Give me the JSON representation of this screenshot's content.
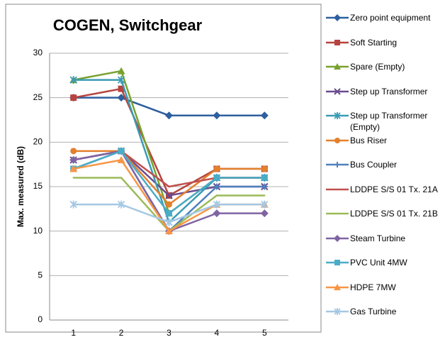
{
  "chart_data": {
    "type": "line",
    "title": "COGEN, Switchgear",
    "y_label": "Max. measured (dB)",
    "categories": [
      "1",
      "2",
      "3",
      "4",
      "5"
    ],
    "ylim": [
      0,
      30
    ],
    "yticks": [
      0,
      5,
      10,
      15,
      20,
      25,
      30
    ],
    "grid": true,
    "legend": "right",
    "series": [
      {
        "name": "Zero point equipment",
        "color": "#2e5f9e",
        "marker": "diamond",
        "values": [
          25,
          25,
          23,
          23,
          23
        ]
      },
      {
        "name": "Soft Starting",
        "color": "#b6433f",
        "marker": "square",
        "values": [
          25,
          26,
          14,
          17,
          17
        ]
      },
      {
        "name": "Spare (Empty)",
        "color": "#78a22f",
        "marker": "triangle",
        "values": [
          27,
          28,
          12,
          16,
          16
        ]
      },
      {
        "name": "Step up Transformer",
        "color": "#6a4b90",
        "marker": "x",
        "values": [
          18,
          19,
          14,
          15,
          15
        ]
      },
      {
        "name": "Step up Transformer (Empty)",
        "color": "#3a9bb5",
        "marker": "star",
        "values": [
          27,
          27,
          11,
          16,
          16
        ]
      },
      {
        "name": "Bus Riser",
        "color": "#e2802e",
        "marker": "circle",
        "values": [
          19,
          19,
          13,
          17,
          17
        ]
      },
      {
        "name": "Bus Coupler",
        "color": "#4f81bd",
        "marker": "plus",
        "values": [
          17,
          19,
          10,
          15,
          15
        ]
      },
      {
        "name": "LDDPE S/S 01 Tx. 21A",
        "color": "#c0504d",
        "marker": "none",
        "values": [
          18,
          19,
          15,
          16,
          16
        ]
      },
      {
        "name": "LDDPE S/S 01 Tx. 21B",
        "color": "#9bbb59",
        "marker": "none",
        "values": [
          16,
          16,
          10,
          14,
          14
        ]
      },
      {
        "name": "Steam Turbine",
        "color": "#8064a2",
        "marker": "diamond",
        "values": [
          18,
          19,
          10,
          12,
          12
        ]
      },
      {
        "name": "PVC Unit 4MW",
        "color": "#4bacc6",
        "marker": "square",
        "values": [
          17,
          19,
          12,
          16,
          16
        ]
      },
      {
        "name": "HDPE 7MW",
        "color": "#f79646",
        "marker": "triangle",
        "values": [
          17,
          18,
          10,
          13,
          13
        ]
      },
      {
        "name": "Gas Turbine",
        "color": "#a5c8e4",
        "marker": "star",
        "values": [
          13,
          13,
          11,
          13,
          13
        ]
      }
    ]
  }
}
